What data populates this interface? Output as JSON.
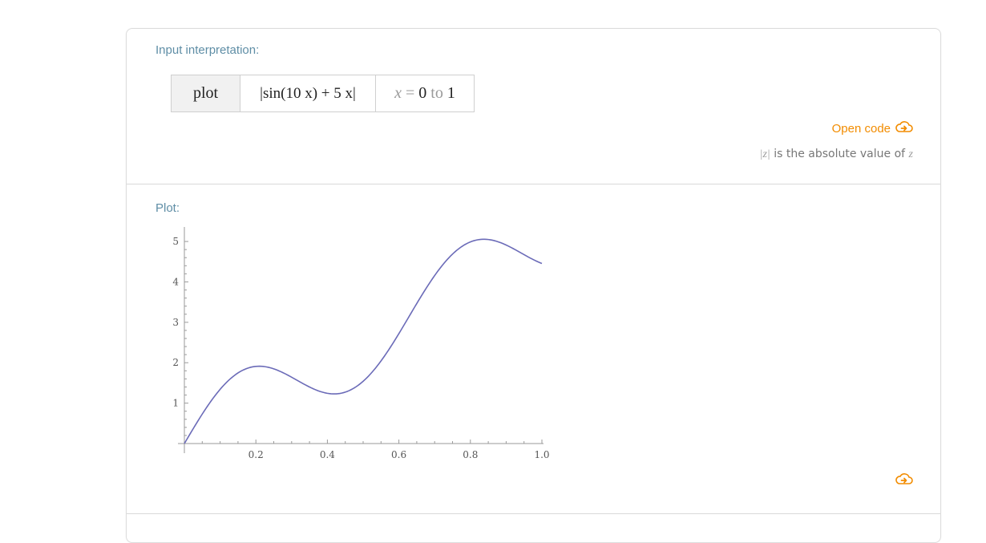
{
  "input_interpretation": {
    "title": "Input interpretation:",
    "command": "plot",
    "expression": "|sin(10 x) + 5 x|",
    "range": {
      "var": "x",
      "eq": " = ",
      "from": "0",
      "to_word": " to ",
      "to": "1"
    }
  },
  "open_code_label": "Open code",
  "note": {
    "z1": "|z|",
    "text": " is the absolute value of ",
    "z2": "z"
  },
  "plot_pod": {
    "title": "Plot:"
  },
  "colors": {
    "accent": "#f28c00",
    "title": "#5f8ea6",
    "curve": "#6b6bb8"
  },
  "icons": {
    "open_code": "cloud-arrow-icon",
    "bottom": "cloud-arrow-icon"
  },
  "chart_data": {
    "type": "line",
    "function": "|sin(10 x) + 5 x|",
    "xlim": [
      0,
      1
    ],
    "ylim": [
      0,
      5.2
    ],
    "xticks": [
      "0.2",
      "0.4",
      "0.6",
      "0.8",
      "1.0"
    ],
    "yticks": [
      "1",
      "2",
      "3",
      "4",
      "5"
    ],
    "series": [
      {
        "x": [
          0,
          0.05,
          0.1,
          0.15,
          0.2,
          0.25,
          0.3,
          0.35,
          0.4,
          0.45,
          0.5,
          0.55,
          0.6,
          0.65,
          0.7,
          0.75,
          0.8,
          0.85,
          0.9,
          0.95,
          1.0
        ],
        "y": [
          0,
          0.73,
          1.34,
          1.75,
          1.91,
          1.85,
          1.64,
          1.4,
          1.24,
          1.27,
          1.54,
          2.04,
          2.72,
          3.47,
          4.16,
          4.69,
          4.99,
          5.05,
          4.91,
          4.68,
          4.46
        ]
      }
    ]
  }
}
